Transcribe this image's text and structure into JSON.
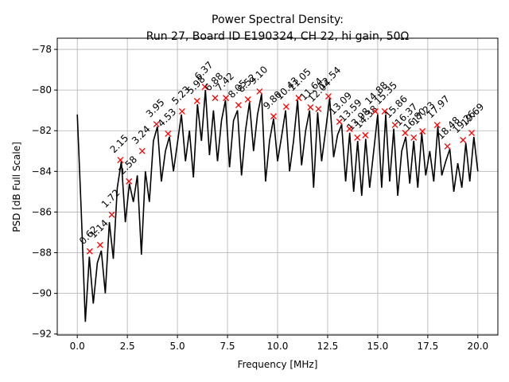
{
  "chart_data": {
    "type": "line",
    "title": "Power Spectral Density:",
    "subtitle": "Run 27, Board ID E190324, CH 22, hi gain, 50Ω",
    "x_label": "Frequency [MHz]",
    "y_label": "PSD [dB Full Scale]",
    "grid": true,
    "xlim": [
      -1.0,
      21.0
    ],
    "ylim": [
      -92.05,
      -77.45
    ],
    "xticks": [
      {
        "value": 0,
        "label": "0.0"
      },
      {
        "value": 2.5,
        "label": "2.5"
      },
      {
        "value": 5,
        "label": "5.0"
      },
      {
        "value": 7.5,
        "label": "7.5"
      },
      {
        "value": 10,
        "label": "10.0"
      },
      {
        "value": 12.5,
        "label": "12.5"
      },
      {
        "value": 15,
        "label": "15.0"
      },
      {
        "value": 17.5,
        "label": "17.5"
      },
      {
        "value": 20,
        "label": "20.0"
      }
    ],
    "yticks": [
      {
        "value": -92,
        "label": "−92"
      },
      {
        "value": -90,
        "label": "−90"
      },
      {
        "value": -88,
        "label": "−88"
      },
      {
        "value": -86,
        "label": "−86"
      },
      {
        "value": -84,
        "label": "−84"
      },
      {
        "value": -82,
        "label": "−82"
      },
      {
        "value": -80,
        "label": "−80"
      },
      {
        "value": -78,
        "label": "−78"
      }
    ],
    "series": [
      {
        "color": "#000000",
        "x": [
          0.0,
          0.2,
          0.4,
          0.6,
          0.8,
          1.0,
          1.2,
          1.4,
          1.6,
          1.8,
          2.0,
          2.2,
          2.4,
          2.6,
          2.8,
          3.0,
          3.2,
          3.4,
          3.6,
          3.8,
          4.0,
          4.2,
          4.4,
          4.6,
          4.8,
          5.0,
          5.2,
          5.4,
          5.6,
          5.8,
          6.0,
          6.2,
          6.4,
          6.6,
          6.8,
          7.0,
          7.2,
          7.4,
          7.6,
          7.8,
          8.0,
          8.2,
          8.4,
          8.6,
          8.8,
          9.0,
          9.2,
          9.4,
          9.6,
          9.8,
          10.0,
          10.2,
          10.4,
          10.6,
          10.8,
          11.0,
          11.2,
          11.4,
          11.6,
          11.8,
          12.0,
          12.2,
          12.4,
          12.6,
          12.8,
          13.0,
          13.2,
          13.4,
          13.6,
          13.8,
          14.0,
          14.2,
          14.4,
          14.6,
          14.8,
          15.0,
          15.2,
          15.4,
          15.6,
          15.8,
          16.0,
          16.2,
          16.4,
          16.6,
          16.8,
          17.0,
          17.2,
          17.4,
          17.6,
          17.8,
          18.0,
          18.2,
          18.4,
          18.6,
          18.8,
          19.0,
          19.2,
          19.4,
          19.6,
          19.8,
          20.0
        ],
        "values": [
          -81.2,
          -86,
          -91.4,
          -88.2,
          -90.5,
          -88.5,
          -87.9,
          -90,
          -86.5,
          -88.3,
          -84.8,
          -83.5,
          -86.5,
          -84.6,
          -85.5,
          -84.2,
          -88.1,
          -84,
          -85.5,
          -82.5,
          -81.8,
          -84.5,
          -83,
          -82.3,
          -84,
          -82.6,
          -81.2,
          -83.5,
          -82,
          -84.3,
          -80.7,
          -82.5,
          -80,
          -83.2,
          -81,
          -83.5,
          -81.5,
          -80.5,
          -83.8,
          -81.5,
          -81,
          -84.2,
          -82,
          -80.6,
          -83,
          -81.2,
          -80.2,
          -84.5,
          -82.5,
          -81.4,
          -83.5,
          -82.3,
          -81,
          -84,
          -82.5,
          -80.5,
          -83.7,
          -82,
          -81,
          -84.8,
          -81.1,
          -83.5,
          -82,
          -80.4,
          -83.3,
          -82.2,
          -81.7,
          -84.5,
          -82.1,
          -85,
          -82.5,
          -85.2,
          -82.4,
          -84.8,
          -83,
          -81.2,
          -84.8,
          -81.2,
          -84.5,
          -81.9,
          -85.2,
          -83,
          -82.3,
          -84.6,
          -82.5,
          -84.8,
          -82.1,
          -84.2,
          -83,
          -84.5,
          -81.8,
          -84.2,
          -83.5,
          -82.9,
          -85,
          -83.6,
          -84.8,
          -82.6,
          -84.5,
          -82.3,
          -84
        ]
      }
    ],
    "peaks": {
      "color": "#ff0000",
      "x": [
        0.62,
        1.14,
        1.72,
        2.15,
        2.58,
        3.24,
        3.95,
        4.53,
        5.23,
        5.98,
        6.37,
        6.88,
        7.42,
        8.05,
        8.52,
        9.1,
        9.8,
        10.43,
        11.05,
        11.64,
        12.04,
        12.54,
        13.09,
        13.59,
        13.98,
        14.38,
        14.88,
        15.35,
        15.86,
        16.37,
        16.8,
        17.23,
        17.97,
        18.48,
        19.26,
        19.69
      ],
      "values": [
        -87.93,
        -87.62,
        -86.13,
        -83.44,
        -84.49,
        -83.0,
        -81.68,
        -82.15,
        -81.05,
        -80.54,
        -79.84,
        -80.39,
        -80.39,
        -80.74,
        -80.46,
        -80.07,
        -81.29,
        -80.82,
        -80.39,
        -80.85,
        -80.93,
        -80.31,
        -81.56,
        -81.91,
        -82.34,
        -82.22,
        -81.05,
        -81.05,
        -81.72,
        -82.11,
        -82.34,
        -82.03,
        -81.72,
        -82.77,
        -82.46,
        -82.11
      ],
      "labels": [
        "0.62",
        "1.14",
        "1.72",
        "2.15",
        "2.58",
        "3.24",
        "3.95",
        "4.53",
        "5.23",
        "5.98",
        "6.37",
        "6.88",
        "7.42",
        "8.05",
        "8.52",
        "9.10",
        "9.80",
        "10.43",
        "11.05",
        "11.64",
        "12.04",
        "12.54",
        "13.09",
        "13.59",
        "13.98",
        "14.38",
        "14.88",
        "15.35",
        "15.86",
        "16.37",
        "16.80",
        "17.23",
        "17.97",
        "18.48",
        "19.26",
        "19.69"
      ]
    }
  }
}
